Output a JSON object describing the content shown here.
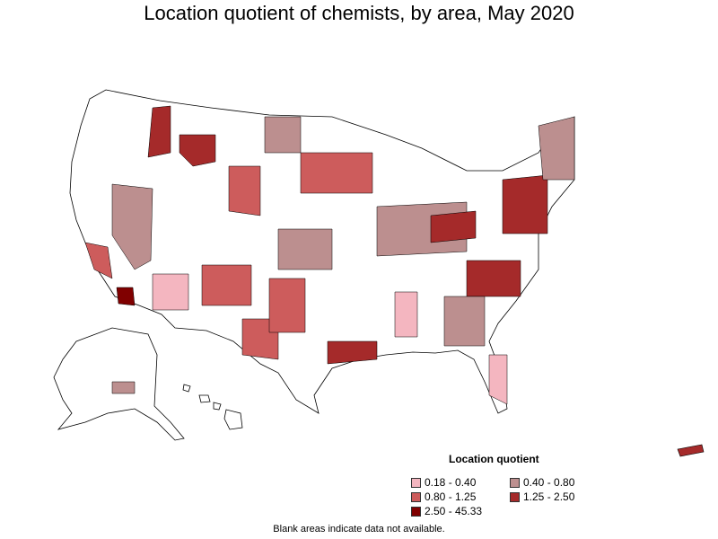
{
  "title": "Location quotient of chemists, by area, May 2020",
  "legend": {
    "title": "Location quotient",
    "items": [
      {
        "label": "0.18 - 0.40",
        "color": "#f4b6c0"
      },
      {
        "label": "0.40 - 0.80",
        "color": "#bc8f8f"
      },
      {
        "label": "0.80 - 1.25",
        "color": "#cd5c5c"
      },
      {
        "label": "1.25 - 2.50",
        "color": "#a52a2a"
      },
      {
        "label": "2.50 - 45.33",
        "color": "#800000"
      }
    ]
  },
  "footnote": "Blank areas indicate data not available.",
  "colors": {
    "blank": "#ffffff",
    "border": "#000000"
  }
}
